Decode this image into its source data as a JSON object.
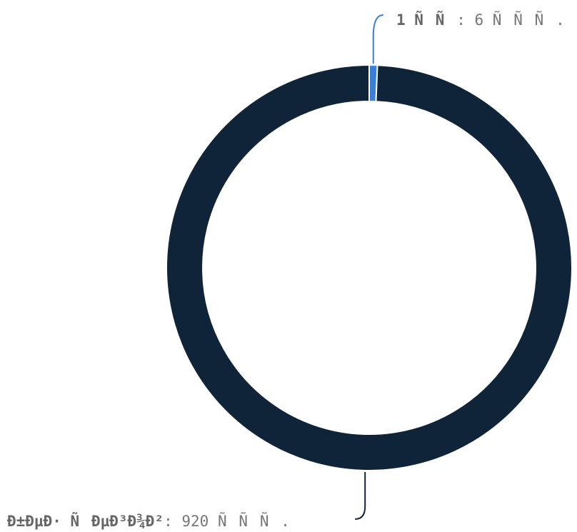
{
  "chart_data": {
    "type": "pie",
    "slices": [
      {
        "label": "1 ÑÑ",
        "value": 6,
        "value_text": ": 6 ÑÑÑ.",
        "color": "#3a7fd5"
      },
      {
        "label": "Ð±ÐµÐ· ÑÐµÐ³Ð¾Ð²",
        "value": 920,
        "value_text": ": 920 ÑÑÑ.",
        "color": "#0f2339"
      }
    ],
    "donut": true,
    "legend": "none"
  }
}
